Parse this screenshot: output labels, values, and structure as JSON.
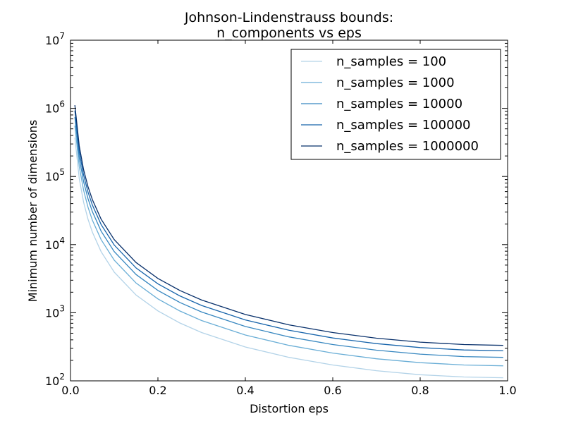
{
  "chart_data": {
    "type": "line",
    "title": [
      "Johnson-Lindenstrauss bounds:",
      "n_components vs eps"
    ],
    "xlabel": "Distortion eps",
    "ylabel": "Minimum number of dimensions",
    "xlim": [
      0.0,
      1.0
    ],
    "ylim": [
      100,
      10000000
    ],
    "yscale": "log",
    "xticks": [
      "0.0",
      "0.2",
      "0.4",
      "0.6",
      "0.8",
      "1.0"
    ],
    "xtick_values": [
      0,
      0.2,
      0.4,
      0.6,
      0.8,
      1.0
    ],
    "yticks": [
      {
        "base": "10",
        "exp": "2"
      },
      {
        "base": "10",
        "exp": "3"
      },
      {
        "base": "10",
        "exp": "4"
      },
      {
        "base": "10",
        "exp": "5"
      },
      {
        "base": "10",
        "exp": "6"
      },
      {
        "base": "10",
        "exp": "7"
      }
    ],
    "ytick_values": [
      100,
      1000,
      10000,
      100000,
      1000000,
      10000000
    ],
    "legend_position": "top-right",
    "grid": false,
    "x": [
      0.01,
      0.02,
      0.03,
      0.04,
      0.05,
      0.07,
      0.1,
      0.15,
      0.2,
      0.25,
      0.3,
      0.4,
      0.5,
      0.6,
      0.7,
      0.8,
      0.9,
      0.99
    ],
    "series": [
      {
        "name": "n_samples = 100",
        "color": "#b3d3e8",
        "values": [
          370887,
          93349,
          41771,
          23656,
          15245,
          7887,
          3947,
          1819,
          1063,
          707,
          512,
          314,
          221,
          171,
          141,
          123,
          114,
          111
        ]
      },
      {
        "name": "n_samples = 1000",
        "color": "#6aaed6",
        "values": [
          556330,
          140024,
          62656,
          35484,
          22867,
          11830,
          5921,
          2729,
          1594,
          1061,
          768,
          471,
          332,
          256,
          211,
          185,
          171,
          166
        ]
      },
      {
        "name": "n_samples = 10000",
        "color": "#3787c0",
        "values": [
          741767,
          186695,
          83541,
          47311,
          30489,
          15773,
          7894,
          3639,
          2125,
          1415,
          1023,
          628,
          442,
          341,
          282,
          247,
          227,
          221
        ]
      },
      {
        "name": "n_samples = 100000",
        "color": "#1764ab",
        "values": [
          927214,
          233372,
          104427,
          59140,
          38112,
          19717,
          9868,
          4548,
          2657,
          1768,
          1279,
          785,
          553,
          426,
          352,
          308,
          284,
          276
        ]
      },
      {
        "name": "n_samples = 1000000",
        "color": "#08306b",
        "values": [
          1112660,
          280044,
          125312,
          70969,
          45734,
          23660,
          11842,
          5458,
          3188,
          2122,
          1535,
          942,
          663,
          512,
          423,
          370,
          341,
          332
        ]
      }
    ]
  }
}
